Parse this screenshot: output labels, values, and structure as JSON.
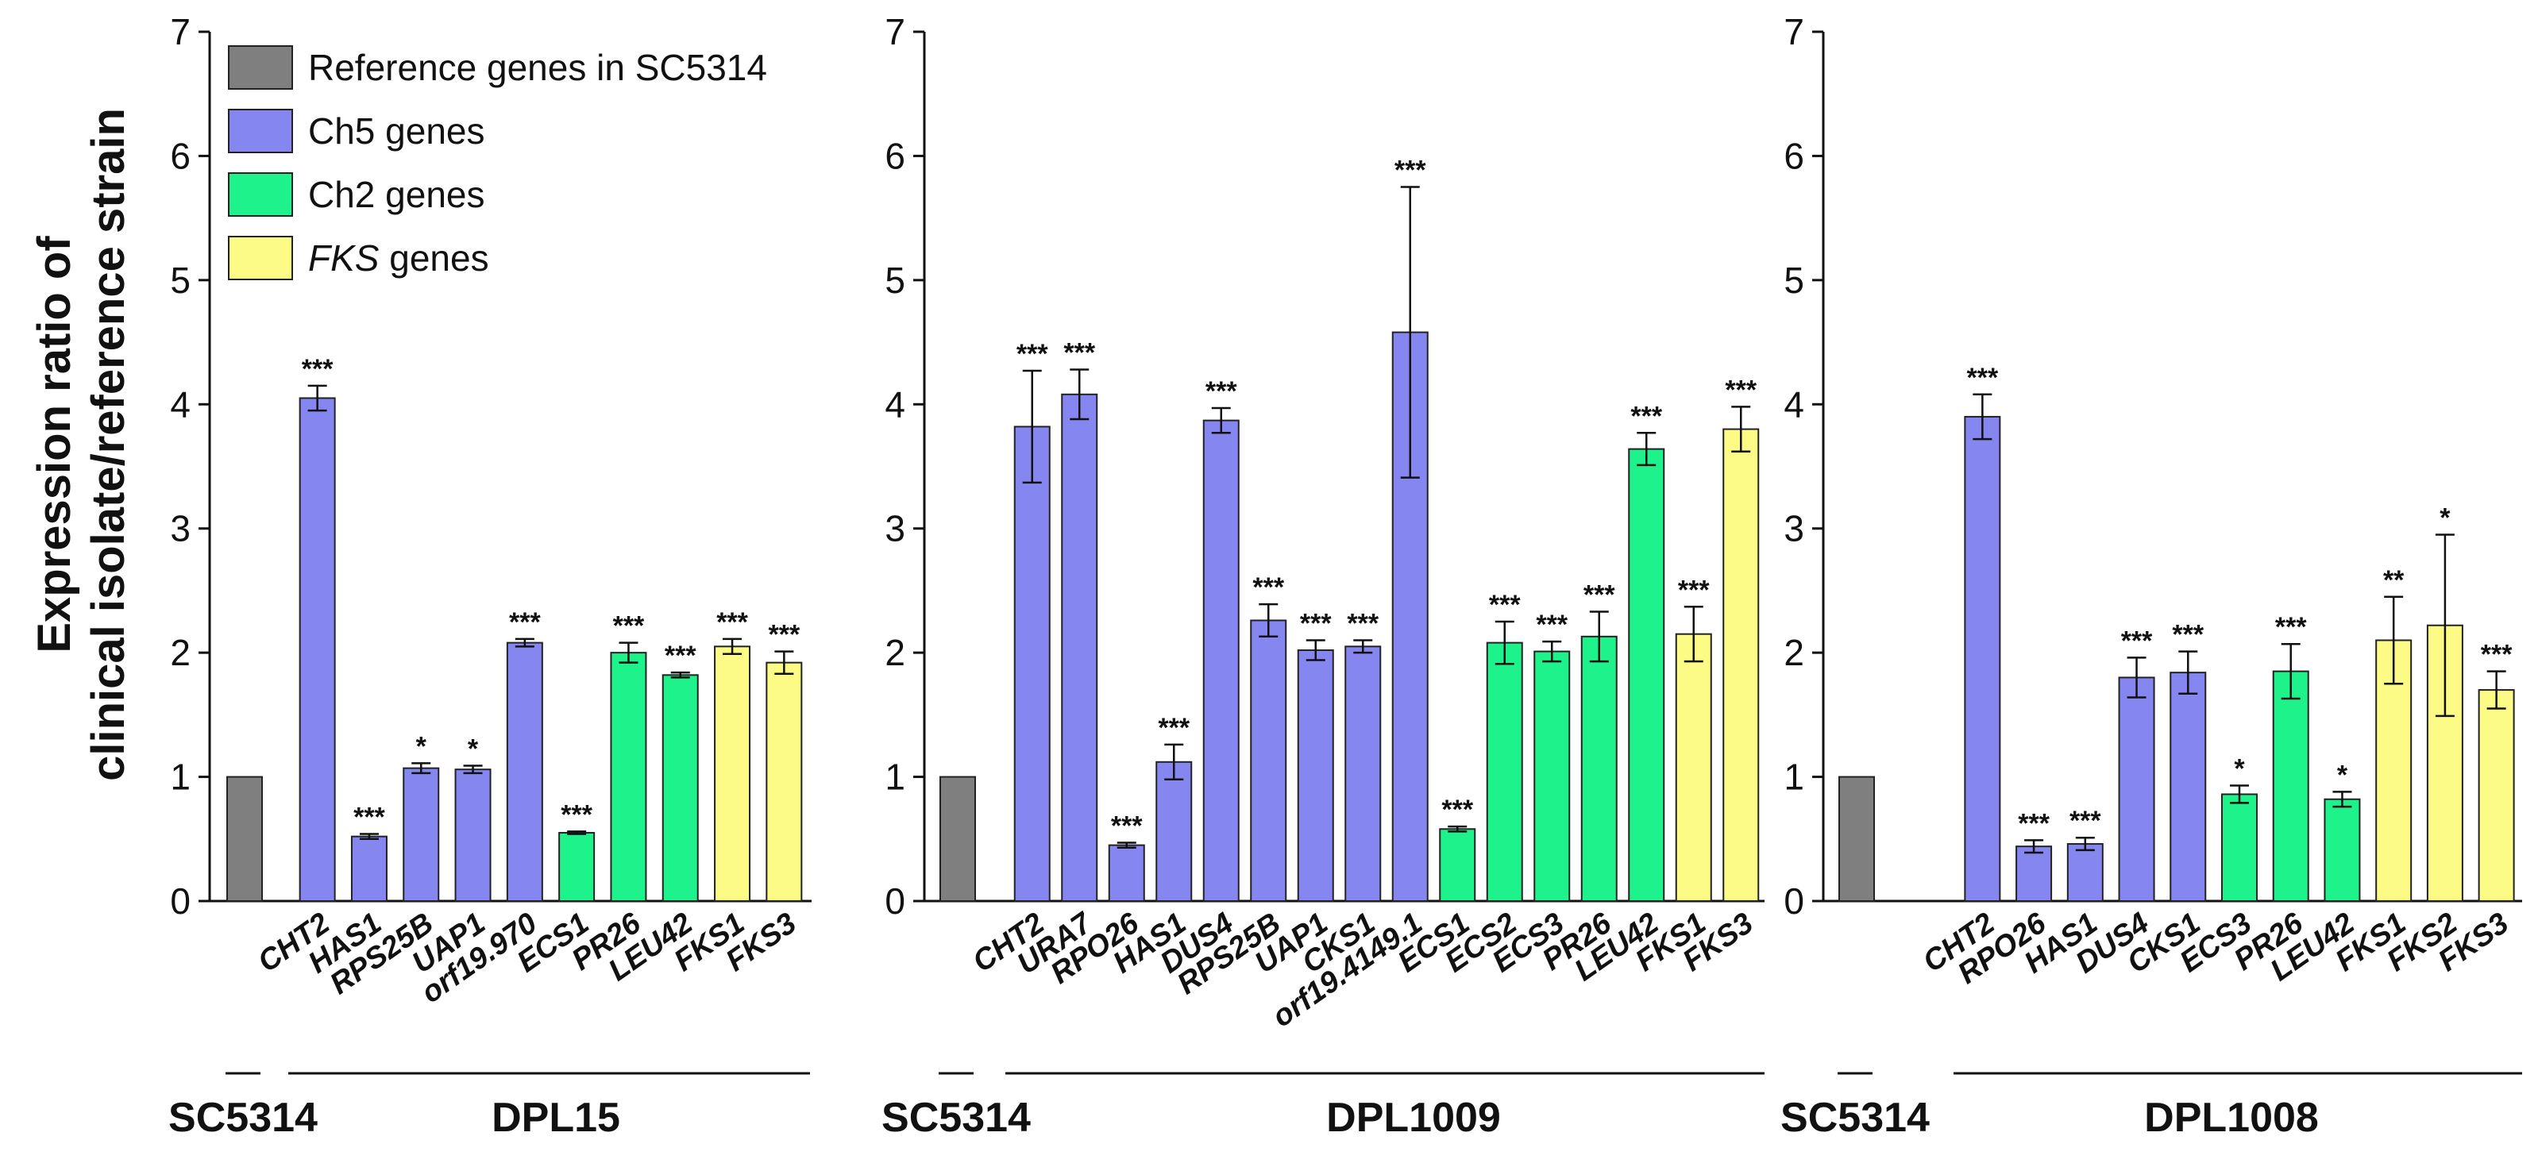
{
  "colors": {
    "reference": "#7f7f7f",
    "ch5": "#8686f0",
    "ch2": "#1ef28a",
    "fks": "#fbfb86",
    "axis": "#111111"
  },
  "ylabel_lines": [
    "Expression ratio of",
    "clinical isolate/reference strain"
  ],
  "legend": [
    {
      "label": "Reference genes in SC5314",
      "key": "reference"
    },
    {
      "label": "Ch5 genes",
      "key": "ch5"
    },
    {
      "label": "Ch2 genes",
      "key": "ch2"
    },
    {
      "label_italic": "FKS",
      "label": " genes",
      "key": "fks"
    }
  ],
  "chart_data": [
    {
      "type": "bar",
      "ylim": [
        0,
        7
      ],
      "yticks": [
        "0",
        "1",
        "2",
        "3",
        "4",
        "5",
        "6",
        "7"
      ],
      "reference": {
        "value": 1.0,
        "label": "SC5314"
      },
      "group_label": "DPL15",
      "bars": [
        {
          "gene": "CHT2",
          "value": 4.05,
          "err": 0.1,
          "sig": "***",
          "cat": "ch5"
        },
        {
          "gene": "HAS1",
          "value": 0.52,
          "err": 0.02,
          "sig": "***",
          "cat": "ch5"
        },
        {
          "gene": "RPS25B",
          "value": 1.07,
          "err": 0.04,
          "sig": "*",
          "cat": "ch5"
        },
        {
          "gene": "UAP1",
          "value": 1.06,
          "err": 0.03,
          "sig": "*",
          "cat": "ch5"
        },
        {
          "gene": "orf19.970",
          "value": 2.08,
          "err": 0.03,
          "sig": "***",
          "cat": "ch5"
        },
        {
          "gene": "ECS1",
          "value": 0.55,
          "err": 0.01,
          "sig": "***",
          "cat": "ch2"
        },
        {
          "gene": "PR26",
          "value": 2.0,
          "err": 0.08,
          "sig": "***",
          "cat": "ch2"
        },
        {
          "gene": "LEU42",
          "value": 1.82,
          "err": 0.02,
          "sig": "***",
          "cat": "ch2"
        },
        {
          "gene": "FKS1",
          "value": 2.05,
          "err": 0.06,
          "sig": "***",
          "cat": "fks"
        },
        {
          "gene": "FKS3",
          "value": 1.92,
          "err": 0.09,
          "sig": "***",
          "cat": "fks"
        }
      ]
    },
    {
      "type": "bar",
      "ylim": [
        0,
        7
      ],
      "yticks": [
        "0",
        "1",
        "2",
        "3",
        "4",
        "5",
        "6",
        "7"
      ],
      "reference": {
        "value": 1.0,
        "label": "SC5314"
      },
      "group_label": "DPL1009",
      "bars": [
        {
          "gene": "CHT2",
          "value": 3.82,
          "err": 0.45,
          "sig": "***",
          "cat": "ch5"
        },
        {
          "gene": "URA7",
          "value": 4.08,
          "err": 0.2,
          "sig": "***",
          "cat": "ch5"
        },
        {
          "gene": "RPO26",
          "value": 0.45,
          "err": 0.02,
          "sig": "***",
          "cat": "ch5"
        },
        {
          "gene": "HAS1",
          "value": 1.12,
          "err": 0.14,
          "sig": "***",
          "cat": "ch5"
        },
        {
          "gene": "DUS4",
          "value": 3.87,
          "err": 0.1,
          "sig": "***",
          "cat": "ch5"
        },
        {
          "gene": "RPS25B",
          "value": 2.26,
          "err": 0.13,
          "sig": "***",
          "cat": "ch5"
        },
        {
          "gene": "UAP1",
          "value": 2.02,
          "err": 0.08,
          "sig": "***",
          "cat": "ch5"
        },
        {
          "gene": "CKS1",
          "value": 2.05,
          "err": 0.05,
          "sig": "***",
          "cat": "ch5"
        },
        {
          "gene": "orf19.4149.1",
          "value": 4.58,
          "err": 1.17,
          "sig": "***",
          "cat": "ch5"
        },
        {
          "gene": "ECS1",
          "value": 0.58,
          "err": 0.02,
          "sig": "***",
          "cat": "ch2"
        },
        {
          "gene": "ECS2",
          "value": 2.08,
          "err": 0.17,
          "sig": "***",
          "cat": "ch2"
        },
        {
          "gene": "ECS3",
          "value": 2.01,
          "err": 0.08,
          "sig": "***",
          "cat": "ch2"
        },
        {
          "gene": "PR26",
          "value": 2.13,
          "err": 0.2,
          "sig": "***",
          "cat": "ch2"
        },
        {
          "gene": "LEU42",
          "value": 3.64,
          "err": 0.13,
          "sig": "***",
          "cat": "ch2"
        },
        {
          "gene": "FKS1",
          "value": 2.15,
          "err": 0.22,
          "sig": "***",
          "cat": "fks"
        },
        {
          "gene": "FKS3",
          "value": 3.8,
          "err": 0.18,
          "sig": "***",
          "cat": "fks"
        }
      ]
    },
    {
      "type": "bar",
      "ylim": [
        0,
        7
      ],
      "yticks": [
        "0",
        "1",
        "2",
        "3",
        "4",
        "5",
        "6",
        "7"
      ],
      "reference": {
        "value": 1.0,
        "label": "SC5314"
      },
      "group_label": "DPL1008",
      "bars": [
        {
          "gene": "CHT2",
          "value": 3.9,
          "err": 0.18,
          "sig": "***",
          "cat": "ch5"
        },
        {
          "gene": "RPO26",
          "value": 0.44,
          "err": 0.05,
          "sig": "***",
          "cat": "ch5"
        },
        {
          "gene": "HAS1",
          "value": 0.46,
          "err": 0.05,
          "sig": "***",
          "cat": "ch5"
        },
        {
          "gene": "DUS4",
          "value": 1.8,
          "err": 0.16,
          "sig": "***",
          "cat": "ch5"
        },
        {
          "gene": "CKS1",
          "value": 1.84,
          "err": 0.17,
          "sig": "***",
          "cat": "ch5"
        },
        {
          "gene": "ECS3",
          "value": 0.86,
          "err": 0.07,
          "sig": "*",
          "cat": "ch2"
        },
        {
          "gene": "PR26",
          "value": 1.85,
          "err": 0.22,
          "sig": "***",
          "cat": "ch2"
        },
        {
          "gene": "LEU42",
          "value": 0.82,
          "err": 0.06,
          "sig": "*",
          "cat": "ch2"
        },
        {
          "gene": "FKS1",
          "value": 2.1,
          "err": 0.35,
          "sig": "**",
          "cat": "fks"
        },
        {
          "gene": "FKS2",
          "value": 2.22,
          "err": 0.73,
          "sig": "*",
          "cat": "fks"
        },
        {
          "gene": "FKS3",
          "value": 1.7,
          "err": 0.15,
          "sig": "***",
          "cat": "fks"
        }
      ]
    }
  ]
}
